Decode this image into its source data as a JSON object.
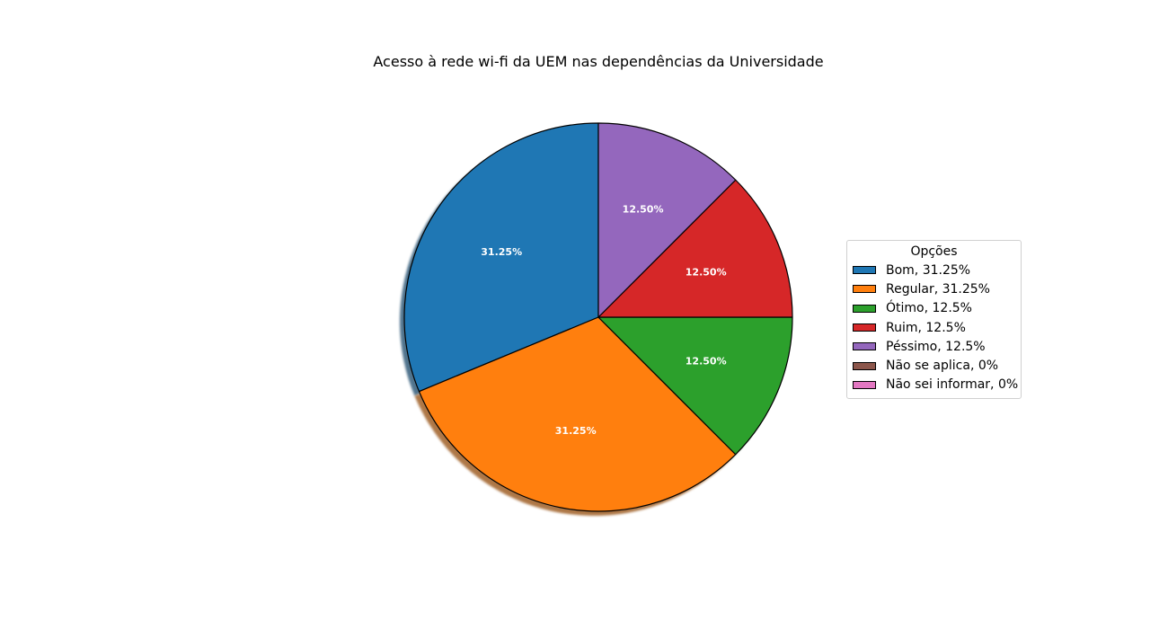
{
  "chart_data": {
    "type": "pie",
    "title": "Acesso à rede wi-fi da UEM nas dependências da Universidade",
    "legend_title": "Opções",
    "legend_placement": "right",
    "start_angle_deg": 90,
    "direction": "counterclockwise",
    "shadow": true,
    "slices": [
      {
        "label": "Bom",
        "legend": "Bom, 31.25%",
        "value": 31.25,
        "pct_label": "31.25%",
        "color": "#1f77b4"
      },
      {
        "label": "Regular",
        "legend": "Regular, 31.25%",
        "value": 31.25,
        "pct_label": "31.25%",
        "color": "#ff7f0e"
      },
      {
        "label": "Ótimo",
        "legend": "Ótimo, 12.5%",
        "value": 12.5,
        "pct_label": "12.50%",
        "color": "#2ca02c"
      },
      {
        "label": "Ruim",
        "legend": "Ruim, 12.5%",
        "value": 12.5,
        "pct_label": "12.50%",
        "color": "#d62728"
      },
      {
        "label": "Péssimo",
        "legend": "Péssimo, 12.5%",
        "value": 12.5,
        "pct_label": "12.50%",
        "color": "#9467bd"
      },
      {
        "label": "Não se aplica",
        "legend": "Não se aplica, 0%",
        "value": 0,
        "pct_label": "",
        "color": "#8c564b"
      },
      {
        "label": "Não sei informar",
        "legend": "Não sei informar, 0%",
        "value": 0,
        "pct_label": "",
        "color": "#e377c2"
      }
    ]
  }
}
